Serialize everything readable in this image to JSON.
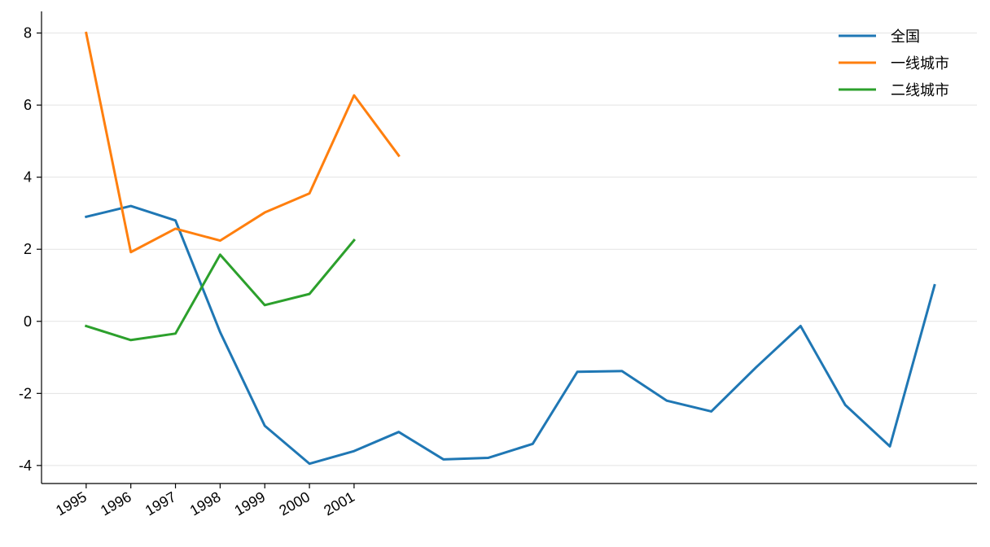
{
  "chart_data": {
    "type": "line",
    "x": [
      1995,
      1996,
      1997,
      1998,
      1999,
      2000,
      2001,
      2002,
      2003,
      2004,
      2005,
      2006,
      2007,
      2008,
      2009,
      2010,
      2011,
      2012,
      2013,
      2014
    ],
    "x_tick_labels": [
      "1995",
      "1996",
      "1997",
      "1998",
      "1999",
      "2000",
      "2001"
    ],
    "y_ticks": [
      -4,
      -2,
      0,
      2,
      4,
      6,
      8
    ],
    "y_tick_labels": [
      "-4",
      "-2",
      "0",
      "2",
      "4",
      "6",
      "8"
    ],
    "xlim": [
      1994,
      2014.95
    ],
    "ylim": [
      -4.5,
      8.6
    ],
    "grid": "horizontal",
    "legend_position": "top-right",
    "series": [
      {
        "name": "全国",
        "color": "#1f77b4",
        "values": [
          2.9,
          3.2,
          2.8,
          -0.3,
          -2.9,
          -3.95,
          -3.6,
          -3.07,
          -3.83,
          -3.79,
          -3.4,
          -1.4,
          -1.38,
          -2.2,
          -2.5,
          -1.28,
          -0.13,
          -2.32,
          -3.47,
          1.0
        ]
      },
      {
        "name": "一线城市",
        "color": "#ff7f0e",
        "values": [
          8.0,
          1.92,
          2.57,
          2.24,
          3.02,
          3.55,
          6.27,
          4.6,
          null,
          null,
          null,
          null,
          null,
          null,
          null,
          null,
          null,
          null,
          null,
          null
        ]
      },
      {
        "name": "二线城市",
        "color": "#2ca02c",
        "values": [
          -0.13,
          -0.52,
          -0.34,
          1.85,
          0.45,
          0.76,
          2.25,
          null,
          null,
          null,
          null,
          null,
          null,
          null,
          null,
          null,
          null,
          null,
          null,
          null
        ]
      }
    ]
  }
}
